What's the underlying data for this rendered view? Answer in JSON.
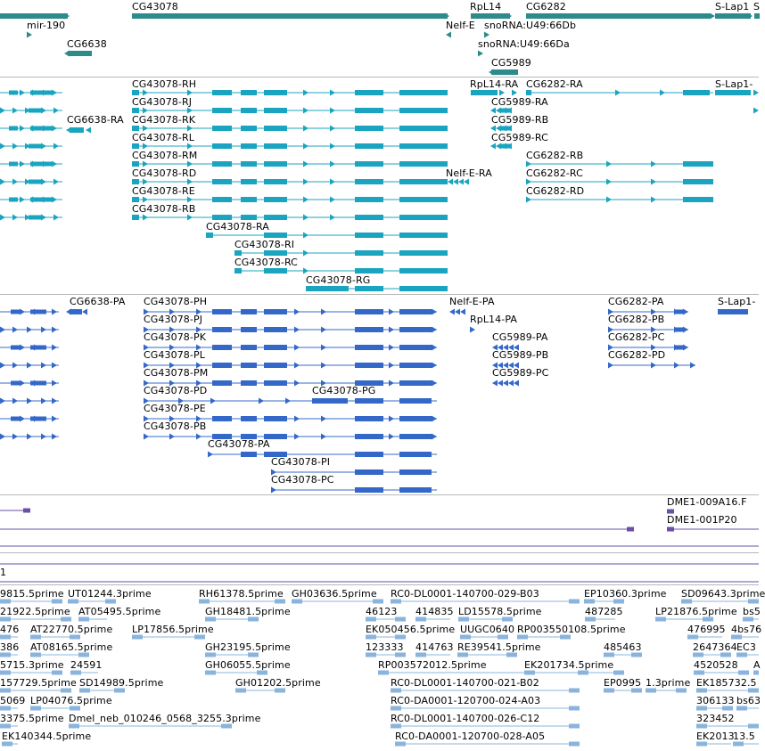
{
  "colors": {
    "gene": "#2e8b8b",
    "transcript": "#1ba4bf",
    "protein": "#3468c8",
    "clone": "#6b4fa8",
    "est": "#8ab4dc",
    "separator": "#b8b8b8"
  },
  "tracks": {
    "genes": {
      "labels": [
        "mir-190",
        "CG43078",
        "CG6638",
        "RpL14",
        "Nelf-E",
        "snoRNA:U49:66Db",
        "snoRNA:U49:66Da",
        "CG5989",
        "CG6282",
        "S-Lap1",
        "S"
      ]
    },
    "transcripts": {
      "labels": [
        "CG43078-RH",
        "CG43078-RJ",
        "CG43078-RK",
        "CG43078-RL",
        "CG43078-RM",
        "CG43078-RD",
        "CG43078-RE",
        "CG43078-RB",
        "CG43078-RA",
        "CG43078-RI",
        "CG43078-RC",
        "CG43078-RG",
        "CG6638-RA",
        "RpL14-RA",
        "CG6282-RA",
        "S-Lap1-",
        "CG5989-RA",
        "CG5989-RB",
        "CG5989-RC",
        "Nelf-E-RA",
        "CG6282-RB",
        "CG6282-RC",
        "CG6282-RD"
      ]
    },
    "proteins": {
      "labels": [
        "CG6638-PA",
        "CG43078-PH",
        "CG43078-PJ",
        "CG43078-PK",
        "CG43078-PL",
        "CG43078-PM",
        "CG43078-PD",
        "CG43078-PG",
        "CG43078-PE",
        "CG43078-PB",
        "CG43078-PA",
        "CG43078-PI",
        "CG43078-PC",
        "Nelf-E-PA",
        "RpL14-PA",
        "CG5989-PA",
        "CG5989-PB",
        "CG5989-PC",
        "CG6282-PA",
        "CG6282-PB",
        "CG6282-PC",
        "CG6282-PD",
        "S-Lap1-"
      ]
    },
    "clones": {
      "labels": [
        "DME1-009A16.F",
        "DME1-001P20"
      ]
    },
    "scaffold": {
      "label": "1"
    },
    "ests": {
      "labels": [
        "9815.5prime",
        "UT01244.3prime",
        "RH61378.5prime",
        "GH03636.5prime",
        "RC0-DL0001-140700-029-B03",
        "EP10360.3prime",
        "SD09643.3prime",
        "21922.5prime",
        "AT05495.5prime",
        "GH18481.5prime",
        "46123",
        "414835",
        "LD15578.5prime",
        "487285",
        "LP21876.5prime",
        "bs5",
        "476",
        "AT22770.5prime",
        "LP17856.5prime",
        "EK050456.5prime",
        "UUGC0640",
        "RP003550108.5prime",
        "476995",
        "4bs76",
        "386",
        "AT08165.5prime",
        "GH23195.5prime",
        "123333",
        "414763",
        "RE39541.5prime",
        "485463",
        "2647364",
        "EC3",
        "5715.3prime",
        "24591",
        "GH06055.5prime",
        "RP003572012.5prime",
        "EK201734.5prime",
        "4520528",
        "A",
        "157729.5prime",
        "SD14989.5prime",
        "GH01202.5prime",
        "RC0-DL0001-140700-021-B02",
        "EP0995",
        "1.3prime",
        "EK185732.5",
        "5069",
        "LP04076.5prime",
        "RC0-DA0001-120700-024-A03",
        "306133",
        "bs63",
        "3375.5prime",
        "Dmel_neb_010246_0568_3255.3prime",
        "RC0-DL0001-140700-026-C12",
        "323452",
        "EK140344.5prime",
        "RC0-DA0001-120700-028-A05",
        "EK2013",
        "13.5"
      ]
    }
  }
}
